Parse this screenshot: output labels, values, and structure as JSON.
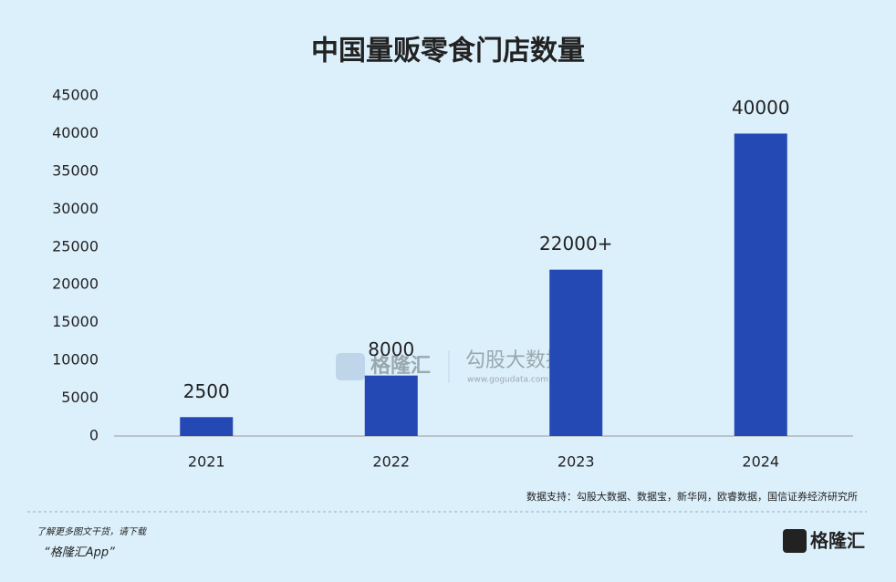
{
  "chart_data": {
    "type": "bar",
    "title": "中国量贩零食门店数量",
    "categories": [
      "2021",
      "2022",
      "2023",
      "2024"
    ],
    "values": [
      2500,
      8000,
      22000,
      40000
    ],
    "value_labels": [
      "2500",
      "8000",
      "22000+",
      "40000"
    ],
    "color": "#2448b4",
    "ylim": [
      0,
      45000
    ],
    "yticks": [
      0,
      5000,
      10000,
      15000,
      20000,
      25000,
      30000,
      35000,
      40000,
      45000
    ],
    "grid": false,
    "source": "数据支持：勾股大数据、数据宝，新华网，欧睿数据，国信证券经济研究所"
  },
  "watermark": {
    "brand": "格隆汇",
    "partner": "勾股大数据",
    "url": "www.gogudata.com"
  },
  "footer": {
    "prompt": "了解更多图文干货，请下载",
    "app": "“格隆汇App”",
    "logo": "格隆汇"
  }
}
